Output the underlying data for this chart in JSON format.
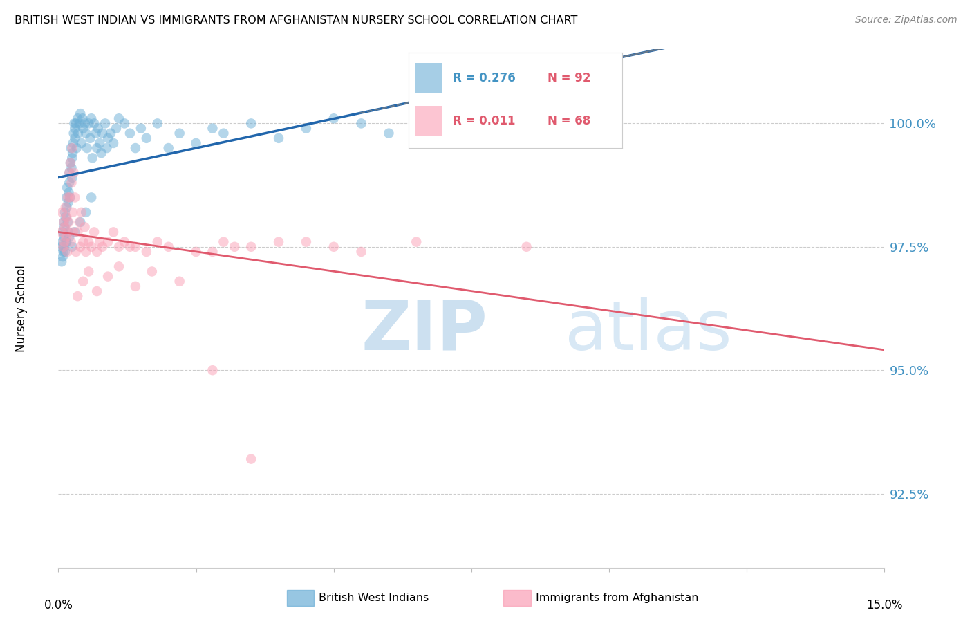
{
  "title": "BRITISH WEST INDIAN VS IMMIGRANTS FROM AFGHANISTAN NURSERY SCHOOL CORRELATION CHART",
  "source": "Source: ZipAtlas.com",
  "ylabel": "Nursery School",
  "yticks": [
    92.5,
    95.0,
    97.5,
    100.0
  ],
  "ytick_labels": [
    "92.5%",
    "95.0%",
    "97.5%",
    "100.0%"
  ],
  "xlim": [
    0.0,
    15.0
  ],
  "ylim": [
    91.0,
    101.5
  ],
  "legend_r1": "R = 0.276",
  "legend_n1": "N = 92",
  "legend_r2": "R = 0.011",
  "legend_n2": "N = 68",
  "color_blue": "#6baed6",
  "color_pink": "#fa9fb5",
  "color_blue_line": "#2166ac",
  "color_pink_line": "#e05a6e",
  "color_blue_text": "#4393c3",
  "color_pink_text": "#e05a6e",
  "watermark_zip_color": "#cce0f0",
  "watermark_atlas_color": "#d8e8f5",
  "blue_scatter_x": [
    0.05,
    0.07,
    0.08,
    0.09,
    0.1,
    0.1,
    0.11,
    0.12,
    0.13,
    0.14,
    0.15,
    0.15,
    0.16,
    0.17,
    0.18,
    0.19,
    0.2,
    0.2,
    0.21,
    0.22,
    0.23,
    0.24,
    0.25,
    0.25,
    0.26,
    0.27,
    0.28,
    0.29,
    0.3,
    0.3,
    0.32,
    0.33,
    0.35,
    0.36,
    0.38,
    0.4,
    0.42,
    0.44,
    0.45,
    0.48,
    0.5,
    0.52,
    0.55,
    0.58,
    0.6,
    0.62,
    0.65,
    0.68,
    0.7,
    0.72,
    0.75,
    0.78,
    0.8,
    0.85,
    0.88,
    0.9,
    0.95,
    1.0,
    1.05,
    1.1,
    1.2,
    1.3,
    1.4,
    1.5,
    1.6,
    1.8,
    2.0,
    2.2,
    2.5,
    2.8,
    3.0,
    3.5,
    4.0,
    4.5,
    5.0,
    5.5,
    6.0,
    6.5,
    7.0,
    8.0,
    0.06,
    0.08,
    0.1,
    0.12,
    0.15,
    0.18,
    0.2,
    0.25,
    0.3,
    0.4,
    0.5,
    0.6
  ],
  "blue_scatter_y": [
    97.5,
    97.6,
    97.8,
    97.4,
    97.7,
    98.0,
    97.9,
    98.2,
    98.1,
    97.6,
    98.5,
    98.3,
    98.7,
    98.0,
    98.4,
    98.6,
    98.8,
    99.0,
    98.5,
    99.2,
    99.5,
    99.1,
    99.3,
    98.9,
    99.4,
    99.6,
    99.8,
    100.0,
    99.7,
    99.9,
    100.0,
    99.5,
    100.1,
    99.8,
    100.0,
    100.2,
    99.6,
    100.1,
    99.9,
    100.0,
    99.8,
    99.5,
    100.0,
    99.7,
    100.1,
    99.3,
    100.0,
    99.8,
    99.5,
    99.9,
    99.6,
    99.4,
    99.8,
    100.0,
    99.5,
    99.7,
    99.8,
    99.6,
    99.9,
    100.1,
    100.0,
    99.8,
    99.5,
    99.9,
    99.7,
    100.0,
    99.5,
    99.8,
    99.6,
    99.9,
    99.8,
    100.0,
    99.7,
    99.9,
    100.1,
    100.0,
    99.8,
    100.2,
    100.0,
    99.8,
    97.2,
    97.3,
    97.5,
    97.4,
    97.6,
    97.8,
    97.7,
    97.5,
    97.8,
    98.0,
    98.2,
    98.5
  ],
  "pink_scatter_x": [
    0.05,
    0.07,
    0.09,
    0.1,
    0.11,
    0.12,
    0.13,
    0.14,
    0.15,
    0.16,
    0.17,
    0.18,
    0.19,
    0.2,
    0.21,
    0.22,
    0.23,
    0.24,
    0.25,
    0.26,
    0.27,
    0.28,
    0.3,
    0.32,
    0.35,
    0.38,
    0.4,
    0.42,
    0.45,
    0.48,
    0.5,
    0.55,
    0.6,
    0.65,
    0.7,
    0.75,
    0.8,
    0.9,
    1.0,
    1.1,
    1.2,
    1.4,
    1.6,
    1.8,
    2.0,
    2.5,
    3.0,
    3.5,
    4.0,
    5.0,
    5.5,
    6.5,
    8.5,
    2.8,
    3.2,
    4.5,
    1.3,
    0.35,
    0.45,
    0.55,
    0.7,
    0.9,
    1.1,
    1.4,
    1.7,
    2.2,
    2.8,
    3.5
  ],
  "pink_scatter_y": [
    97.8,
    98.2,
    97.5,
    98.0,
    97.6,
    97.9,
    98.3,
    97.7,
    98.1,
    97.4,
    98.5,
    97.8,
    98.0,
    99.0,
    98.5,
    99.2,
    97.6,
    98.8,
    99.5,
    98.2,
    97.8,
    99.0,
    98.5,
    97.4,
    97.8,
    98.0,
    97.5,
    98.2,
    97.6,
    97.9,
    97.4,
    97.6,
    97.5,
    97.8,
    97.4,
    97.6,
    97.5,
    97.6,
    97.8,
    97.5,
    97.6,
    97.5,
    97.4,
    97.6,
    97.5,
    97.4,
    97.6,
    97.5,
    97.6,
    97.5,
    97.4,
    97.6,
    97.5,
    97.4,
    97.5,
    97.6,
    97.5,
    96.5,
    96.8,
    97.0,
    96.6,
    96.9,
    97.1,
    96.7,
    97.0,
    96.8,
    95.0,
    93.2
  ]
}
